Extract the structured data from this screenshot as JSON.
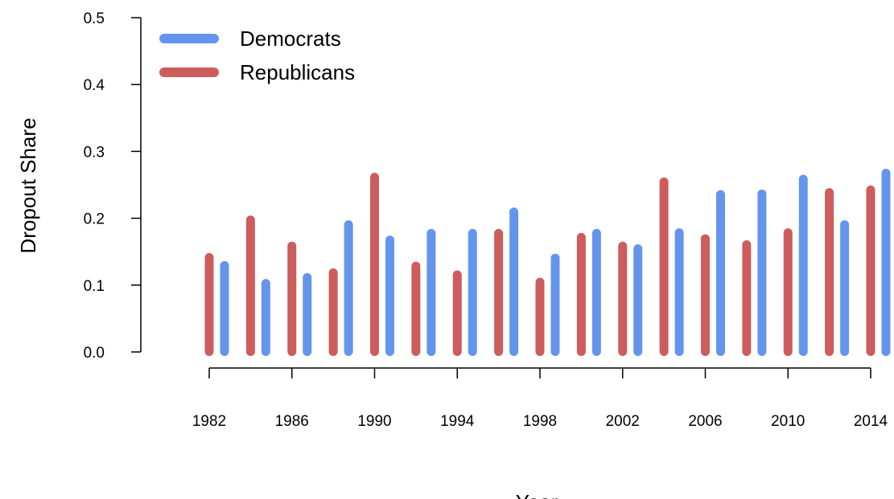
{
  "chart_data": {
    "type": "bar",
    "xlabel": "Year",
    "ylabel": "Dropout Share",
    "ylim": [
      0,
      0.5
    ],
    "yticks": [
      "0.0",
      "0.1",
      "0.2",
      "0.3",
      "0.4",
      "0.5"
    ],
    "xticks": [
      "1982",
      "1986",
      "1990",
      "1994",
      "1998",
      "2002",
      "2006",
      "2010",
      "2014"
    ],
    "legend_position": "top-left",
    "series": [
      {
        "name": "Republicans",
        "color": "#cd5c5c",
        "x": [
          1982,
          1984,
          1986,
          1988,
          1990,
          1992,
          1994,
          1996,
          1998,
          2000,
          2002,
          2004,
          2006,
          2008,
          2010,
          2012,
          2014
        ],
        "values": [
          0.148,
          0.204,
          0.165,
          0.125,
          0.268,
          0.135,
          0.122,
          0.184,
          0.111,
          0.178,
          0.165,
          0.261,
          0.176,
          0.167,
          0.185,
          0.245,
          0.249
        ]
      },
      {
        "name": "Democrats",
        "color": "#6495ed",
        "x": [
          1982,
          1984,
          1986,
          1988,
          1990,
          1992,
          1994,
          1996,
          1998,
          2000,
          2002,
          2004,
          2006,
          2008,
          2010,
          2012,
          2014
        ],
        "values": [
          0.136,
          0.109,
          0.118,
          0.197,
          0.174,
          0.184,
          0.184,
          0.216,
          0.147,
          0.184,
          0.161,
          0.185,
          0.242,
          0.243,
          0.265,
          0.197,
          0.274
        ]
      }
    ],
    "legend": [
      "Democrats",
      "Republicans"
    ]
  }
}
